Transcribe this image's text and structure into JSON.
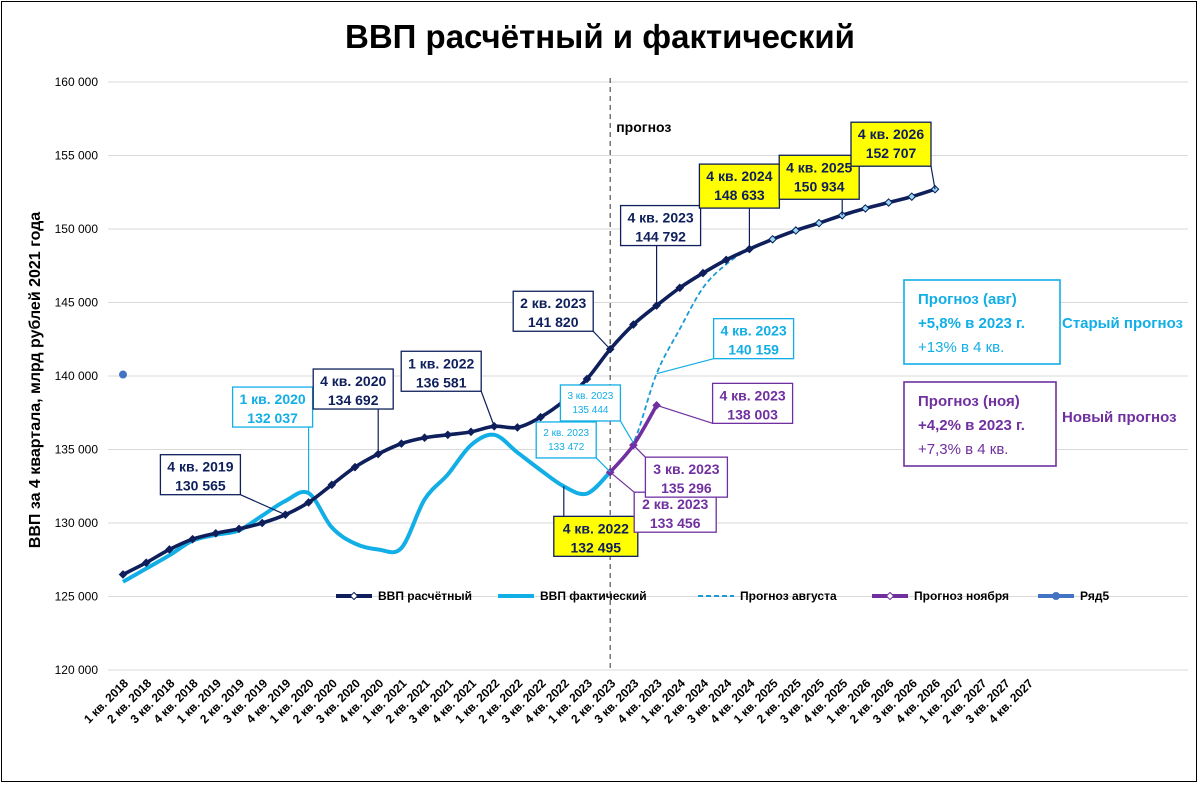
{
  "chart_data": {
    "type": "line",
    "title": "ВВП расчётный и фактический",
    "ylabel": "ВВП за 4 квартала, млрд рублей 2021 года",
    "xlabel": "",
    "ylim": [
      120000,
      160000
    ],
    "ytick_step": 5000,
    "grid": true,
    "legend_position": "bottom",
    "forecast_label": "прогноз",
    "forecast_start": "2 кв. 2023",
    "categories": [
      "1 кв. 2018",
      "2 кв. 2018",
      "3 кв. 2018",
      "4 кв. 2018",
      "1 кв. 2019",
      "2 кв. 2019",
      "3 кв. 2019",
      "4 кв. 2019",
      "1 кв. 2020",
      "2 кв. 2020",
      "3 кв. 2020",
      "4 кв. 2020",
      "1 кв. 2021",
      "2 кв. 2021",
      "3 кв. 2021",
      "4 кв. 2021",
      "1 кв. 2022",
      "2 кв. 2022",
      "3 кв. 2022",
      "4 кв. 2022",
      "1 кв. 2023",
      "2 кв. 2023",
      "3 кв. 2023",
      "4 кв. 2023",
      "1 кв. 2024",
      "2 кв. 2024",
      "3 кв. 2024",
      "4 кв. 2024",
      "1 кв. 2025",
      "2 кв. 2025",
      "3 кв. 2025",
      "4 кв. 2025",
      "1 кв. 2026",
      "2 кв. 2026",
      "3 кв. 2026",
      "4 кв. 2026",
      "1 кв. 2027",
      "2 кв. 2027",
      "3 кв. 2027",
      "4 кв. 2027"
    ],
    "series": [
      {
        "name": "ВВП расчётный",
        "color": "#0e1f5b",
        "style": "solid-markers",
        "values": [
          126500,
          127300,
          128200,
          128900,
          129300,
          129600,
          130000,
          130565,
          131400,
          132600,
          133800,
          134692,
          135400,
          135800,
          136000,
          136200,
          136581,
          136500,
          137200,
          138300,
          139800,
          141820,
          143500,
          144792,
          146000,
          147000,
          147900,
          148633,
          149300,
          149900,
          150400,
          150934,
          151400,
          151800,
          152200,
          152707,
          null,
          null,
          null,
          null
        ]
      },
      {
        "name": "ВВП фактический",
        "color": "#12aee6",
        "style": "solid",
        "values": [
          126000,
          126900,
          127800,
          128800,
          129200,
          129500,
          130500,
          131500,
          132037,
          129700,
          128600,
          128200,
          128300,
          131600,
          133300,
          135300,
          136000,
          134800,
          133600,
          132495,
          132000,
          133472,
          null,
          null,
          null,
          null,
          null,
          null,
          null,
          null,
          null,
          null,
          null,
          null,
          null,
          null,
          null,
          null,
          null,
          null
        ]
      },
      {
        "name": "Прогноз августа",
        "color": "#1a9ad6",
        "style": "dashed",
        "values": [
          null,
          null,
          null,
          null,
          null,
          null,
          null,
          null,
          null,
          null,
          null,
          null,
          null,
          null,
          null,
          null,
          null,
          null,
          null,
          null,
          null,
          133472,
          135444,
          140159,
          143200,
          146000,
          147600,
          148633,
          149300,
          149900,
          150400,
          150934,
          151400,
          151800,
          152200,
          152707,
          null,
          null,
          null,
          null
        ]
      },
      {
        "name": "Прогноз ноября",
        "color": "#7030a0",
        "style": "solid-markers",
        "values": [
          null,
          null,
          null,
          null,
          null,
          null,
          null,
          null,
          null,
          null,
          null,
          null,
          null,
          null,
          null,
          null,
          null,
          null,
          null,
          null,
          null,
          133456,
          135296,
          138003,
          null,
          null,
          null,
          null,
          null,
          null,
          null,
          null,
          null,
          null,
          null,
          null,
          null,
          null,
          null,
          null
        ]
      },
      {
        "name": "Ряд5",
        "color": "#4472c4",
        "style": "point",
        "values": [
          140100,
          null,
          null,
          null,
          null,
          null,
          null,
          null,
          null,
          null,
          null,
          null,
          null,
          null,
          null,
          null,
          null,
          null,
          null,
          null,
          null,
          null,
          null,
          null,
          null,
          null,
          null,
          null,
          null,
          null,
          null,
          null,
          null,
          null,
          null,
          null,
          null,
          null,
          null,
          null
        ]
      }
    ],
    "annotations": [
      {
        "lines": [
          "4 кв. 2019",
          "130 565"
        ],
        "color": "#0e1f5b",
        "fill": "#ffffff",
        "idx": 7,
        "value": 130565
      },
      {
        "lines": [
          "1 кв. 2020",
          "132 037"
        ],
        "color": "#12aee6",
        "fill": "#ffffff",
        "idx": 8,
        "value": 132037
      },
      {
        "lines": [
          "4 кв. 2020",
          "134 692"
        ],
        "color": "#0e1f5b",
        "fill": "#ffffff",
        "idx": 11,
        "value": 134692
      },
      {
        "lines": [
          "1 кв. 2022",
          "136 581"
        ],
        "color": "#0e1f5b",
        "fill": "#ffffff",
        "idx": 16,
        "value": 136581
      },
      {
        "lines": [
          "4 кв. 2022",
          "132 495"
        ],
        "color": "#0e1f5b",
        "fill": "#ffff00",
        "idx": 19,
        "value": 132495
      },
      {
        "lines": [
          "2 кв. 2023",
          "141 820"
        ],
        "color": "#0e1f5b",
        "fill": "#ffffff",
        "idx": 21,
        "value": 141820
      },
      {
        "lines": [
          "2 кв. 2023",
          "133 472"
        ],
        "color": "#12aee6",
        "fill": "#ffffff",
        "idx": 21,
        "value": 133472,
        "small": true
      },
      {
        "lines": [
          "3 кв. 2023",
          "135 444"
        ],
        "color": "#12aee6",
        "fill": "#ffffff",
        "idx": 22,
        "value": 135444,
        "small": true
      },
      {
        "lines": [
          "2 кв. 2023",
          "133 456"
        ],
        "color": "#7030a0",
        "fill": "#ffffff",
        "idx": 21,
        "value": 133456
      },
      {
        "lines": [
          "3 кв. 2023",
          "135 296"
        ],
        "color": "#7030a0",
        "fill": "#ffffff",
        "idx": 22,
        "value": 135296
      },
      {
        "lines": [
          "4 кв. 2023",
          "144 792"
        ],
        "color": "#0e1f5b",
        "fill": "#ffffff",
        "idx": 23,
        "value": 144792
      },
      {
        "lines": [
          "4 кв. 2023",
          "140 159"
        ],
        "color": "#12aee6",
        "fill": "#ffffff",
        "idx": 23,
        "value": 140159
      },
      {
        "lines": [
          "4 кв. 2023",
          "138 003"
        ],
        "color": "#7030a0",
        "fill": "#ffffff",
        "idx": 23,
        "value": 138003
      },
      {
        "lines": [
          "4 кв. 2024",
          "148 633"
        ],
        "color": "#0e1f5b",
        "fill": "#ffff00",
        "idx": 27,
        "value": 148633
      },
      {
        "lines": [
          "4 кв. 2025",
          "150 934"
        ],
        "color": "#0e1f5b",
        "fill": "#ffff00",
        "idx": 31,
        "value": 150934
      },
      {
        "lines": [
          "4 кв. 2026",
          "152 707"
        ],
        "color": "#0e1f5b",
        "fill": "#ffff00",
        "idx": 35,
        "value": 152707
      }
    ],
    "boxes": [
      {
        "lines": [
          "Прогноз (авг)",
          "+5,8% в 2023 г.",
          "+13% в 4 кв."
        ],
        "color": "#12aee6",
        "side_label": "Старый прогноз"
      },
      {
        "lines": [
          "Прогноз (ноя)",
          "+4,2% в 2023 г.",
          "+7,3% в 4 кв."
        ],
        "color": "#7030a0",
        "side_label": "Новый прогноз"
      }
    ]
  }
}
